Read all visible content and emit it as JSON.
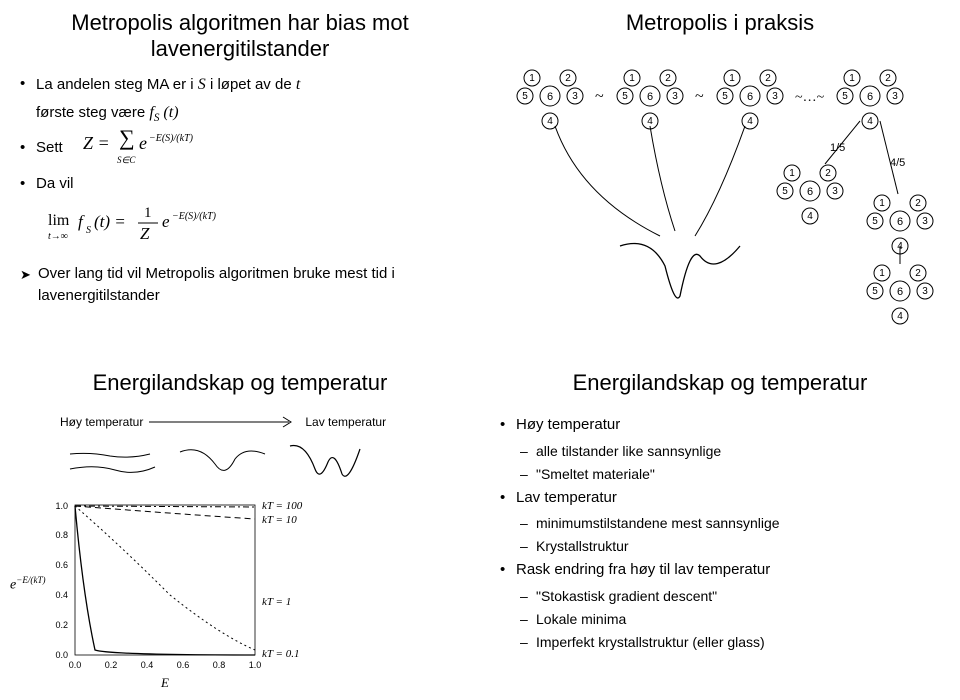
{
  "tl": {
    "title": "Metropolis algoritmen har bias mot lavenergitilstander",
    "bullet1_pre": "La andelen steg MA er i ",
    "bullet1_var1": "S",
    "bullet1_mid": " i løpet av de ",
    "bullet1_var2": "t",
    "bullet2_pre": "første steg være  ",
    "bullet2_formula": "f_S(t)",
    "bullet3_label": "Sett",
    "bullet4_label": "Da vil",
    "arrow_text": "Over lang tid vil Metropolis algoritmen bruke mest tid i lavenergitilstander"
  },
  "tr": {
    "title": "Metropolis i praksis",
    "tilde": "~",
    "dots_tilde": "~…~",
    "prob1": "1/5",
    "prob2": "4/5"
  },
  "bl": {
    "title": "Energilandskap og temperatur",
    "label_hi": "Høy temperatur",
    "label_lo": "Lav temperatur",
    "kt_labels": [
      "kT = 100",
      "kT = 10",
      "kT = 1",
      "kT = 0.1"
    ],
    "xaxis": "E",
    "yaxis": "e^(-E/(kT))",
    "ticks": [
      "0.0",
      "0.2",
      "0.4",
      "0.6",
      "0.8",
      "1.0"
    ]
  },
  "br": {
    "title": "Energilandskap og temperatur",
    "items": [
      {
        "level": 1,
        "text": "Høy temperatur"
      },
      {
        "level": 2,
        "text": "alle tilstander like sannsynlige"
      },
      {
        "level": 2,
        "text": "\"Smeltet materiale\""
      },
      {
        "level": 1,
        "text": "Lav temperatur"
      },
      {
        "level": 2,
        "text": "minimumstilstandene mest sannsynlige"
      },
      {
        "level": 2,
        "text": "Krystallstruktur"
      },
      {
        "level": 1,
        "text": "Rask endring fra høy til lav temperatur"
      },
      {
        "level": 2,
        "text": "\"Stokastisk gradient descent\""
      },
      {
        "level": 2,
        "text": "Lokale minima"
      },
      {
        "level": 2,
        "text": "Imperfekt krystallstruktur (eller glass)"
      }
    ]
  },
  "colors": {
    "text": "#000000",
    "bg": "#ffffff",
    "line": "#000000"
  }
}
